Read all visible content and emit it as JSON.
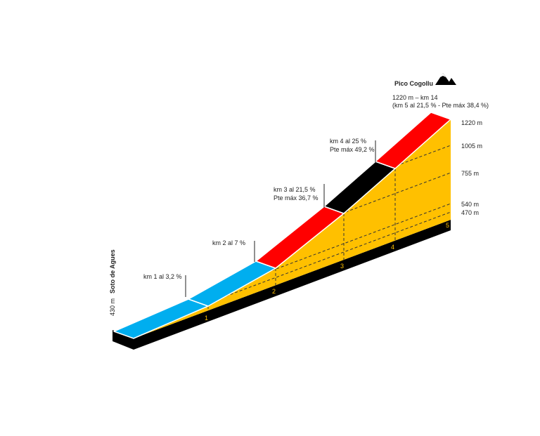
{
  "start": {
    "name": "Soto de Agues",
    "elevation": "430 m"
  },
  "summit": {
    "name": "Pico Cogollu",
    "line1": "1220 m – km 14",
    "line2": "(km 5 al 21,5 % - Pte máx 38,4 %)",
    "icon": "mountain-icon"
  },
  "elevation_labels": [
    "1220 m",
    "1005 m",
    "755 m",
    "540 m",
    "470 m"
  ],
  "km_markers": [
    "1",
    "2",
    "3",
    "4",
    "5"
  ],
  "segments": [
    {
      "km": 1,
      "gradient_color": "#00AEEF",
      "label": [
        "km 1 al 3,2 %"
      ]
    },
    {
      "km": 2,
      "gradient_color": "#00AEEF",
      "label": [
        "km 2 al 7 %"
      ]
    },
    {
      "km": 3,
      "gradient_color": "#FF0000",
      "label": [
        "km 3 al 21,5 %",
        "Pte máx 36,7 %"
      ]
    },
    {
      "km": 4,
      "gradient_color": "#000000",
      "label": [
        "km 4 al 25 %",
        "Pte máx 49,2 %"
      ]
    },
    {
      "km": 5,
      "gradient_color": "#FF0000",
      "label": []
    }
  ],
  "colors": {
    "profile_fill": "#FFC000",
    "base": "#000000"
  }
}
